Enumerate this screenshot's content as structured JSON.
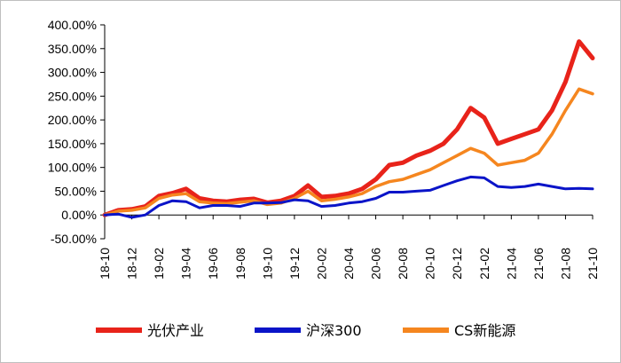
{
  "chart_data": {
    "type": "line",
    "title": "",
    "xlabel": "",
    "ylabel": "",
    "ylim": [
      -50,
      400
    ],
    "y_ticks": [
      "400.00%",
      "350.00%",
      "300.00%",
      "250.00%",
      "200.00%",
      "150.00%",
      "100.00%",
      "50.00%",
      "0.00%",
      "-50.00%"
    ],
    "y_tick_values": [
      400,
      350,
      300,
      250,
      200,
      150,
      100,
      50,
      0,
      -50
    ],
    "x_ticks": [
      "18-10",
      "18-12",
      "19-02",
      "19-04",
      "19-06",
      "19-08",
      "19-10",
      "19-12",
      "20-02",
      "20-04",
      "20-06",
      "20-08",
      "20-10",
      "20-12",
      "21-02",
      "21-04",
      "21-06",
      "21-08",
      "21-10"
    ],
    "x_range": [
      "2018-10",
      "2021-10"
    ],
    "grid": false,
    "legend_position": "bottom",
    "series": [
      {
        "name": "光伏产业",
        "color": "#e8231a",
        "x": [
          "2018-10",
          "2018-11",
          "2018-12",
          "2019-01",
          "2019-02",
          "2019-03",
          "2019-04",
          "2019-05",
          "2019-06",
          "2019-07",
          "2019-08",
          "2019-09",
          "2019-10",
          "2019-11",
          "2019-12",
          "2020-01",
          "2020-02",
          "2020-03",
          "2020-04",
          "2020-05",
          "2020-06",
          "2020-07",
          "2020-08",
          "2020-09",
          "2020-10",
          "2020-11",
          "2020-12",
          "2021-01",
          "2021-02",
          "2021-03",
          "2021-04",
          "2021-05",
          "2021-06",
          "2021-07",
          "2021-08",
          "2021-09",
          "2021-10"
        ],
        "values": [
          0,
          10,
          12,
          18,
          40,
          46,
          55,
          35,
          30,
          28,
          32,
          34,
          26,
          30,
          40,
          62,
          38,
          40,
          45,
          55,
          75,
          105,
          110,
          125,
          135,
          150,
          180,
          225,
          205,
          150,
          160,
          170,
          180,
          220,
          280,
          365,
          330
        ]
      },
      {
        "name": "沪深300",
        "color": "#0a14c8",
        "x": [
          "2018-10",
          "2018-11",
          "2018-12",
          "2019-01",
          "2019-02",
          "2019-03",
          "2019-04",
          "2019-05",
          "2019-06",
          "2019-07",
          "2019-08",
          "2019-09",
          "2019-10",
          "2019-11",
          "2019-12",
          "2020-01",
          "2020-02",
          "2020-03",
          "2020-04",
          "2020-05",
          "2020-06",
          "2020-07",
          "2020-08",
          "2020-09",
          "2020-10",
          "2020-11",
          "2020-12",
          "2021-01",
          "2021-02",
          "2021-03",
          "2021-04",
          "2021-05",
          "2021-06",
          "2021-07",
          "2021-08",
          "2021-09",
          "2021-10"
        ],
        "values": [
          0,
          2,
          -5,
          0,
          20,
          30,
          28,
          15,
          20,
          20,
          18,
          25,
          25,
          26,
          32,
          30,
          18,
          20,
          25,
          28,
          35,
          48,
          48,
          50,
          52,
          62,
          72,
          80,
          78,
          60,
          58,
          60,
          65,
          60,
          55,
          56,
          55
        ]
      },
      {
        "name": "CS新能源",
        "color": "#f5861f",
        "x": [
          "2018-10",
          "2018-11",
          "2018-12",
          "2019-01",
          "2019-02",
          "2019-03",
          "2019-04",
          "2019-05",
          "2019-06",
          "2019-07",
          "2019-08",
          "2019-09",
          "2019-10",
          "2019-11",
          "2019-12",
          "2020-01",
          "2020-02",
          "2020-03",
          "2020-04",
          "2020-05",
          "2020-06",
          "2020-07",
          "2020-08",
          "2020-09",
          "2020-10",
          "2020-11",
          "2020-12",
          "2021-01",
          "2021-02",
          "2021-03",
          "2021-04",
          "2021-05",
          "2021-06",
          "2021-07",
          "2021-08",
          "2021-09",
          "2021-10"
        ],
        "values": [
          0,
          8,
          10,
          15,
          35,
          42,
          45,
          28,
          25,
          24,
          27,
          30,
          22,
          25,
          35,
          50,
          30,
          33,
          38,
          45,
          60,
          70,
          75,
          85,
          95,
          110,
          125,
          140,
          130,
          105,
          110,
          115,
          130,
          170,
          220,
          265,
          255
        ]
      }
    ]
  }
}
